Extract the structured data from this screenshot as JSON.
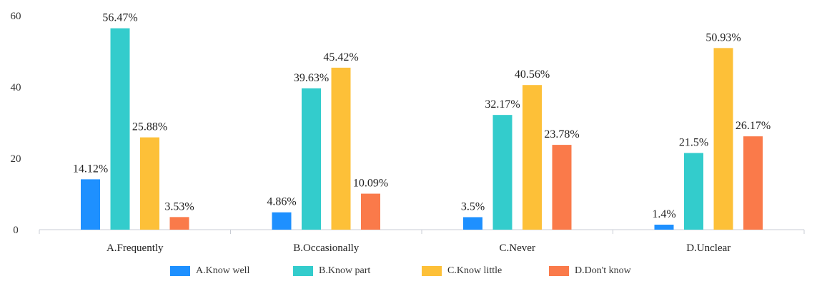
{
  "chart_data": {
    "type": "bar",
    "title": "",
    "xlabel": "",
    "ylabel": "",
    "ylim": [
      0,
      60
    ],
    "yticks": [
      0,
      20,
      40,
      60
    ],
    "grid": false,
    "legend_position": "bottom",
    "categories": [
      "A.Frequently",
      "B.Occasionally",
      "C.Never",
      "D.Unclear"
    ],
    "series": [
      {
        "name": "A.Know well",
        "color": "#1E90FF",
        "values": [
          14.12,
          4.86,
          3.5,
          1.4
        ],
        "labels": [
          "14.12%",
          "4.86%",
          "3.5%",
          "1.4%"
        ]
      },
      {
        "name": "B.Know part",
        "color": "#33CCCC",
        "values": [
          56.47,
          39.63,
          32.17,
          21.5
        ],
        "labels": [
          "56.47%",
          "39.63%",
          "32.17%",
          "21.5%"
        ]
      },
      {
        "name": "C.Know little",
        "color": "#FDC038",
        "values": [
          25.88,
          45.42,
          40.56,
          50.93
        ],
        "labels": [
          "25.88%",
          "45.42%",
          "40.56%",
          "50.93%"
        ]
      },
      {
        "name": "D.Don't know",
        "color": "#FA7A4A",
        "values": [
          3.53,
          10.09,
          23.78,
          26.17
        ],
        "labels": [
          "3.53%",
          "10.09%",
          "23.78%",
          "26.17%"
        ]
      }
    ]
  }
}
